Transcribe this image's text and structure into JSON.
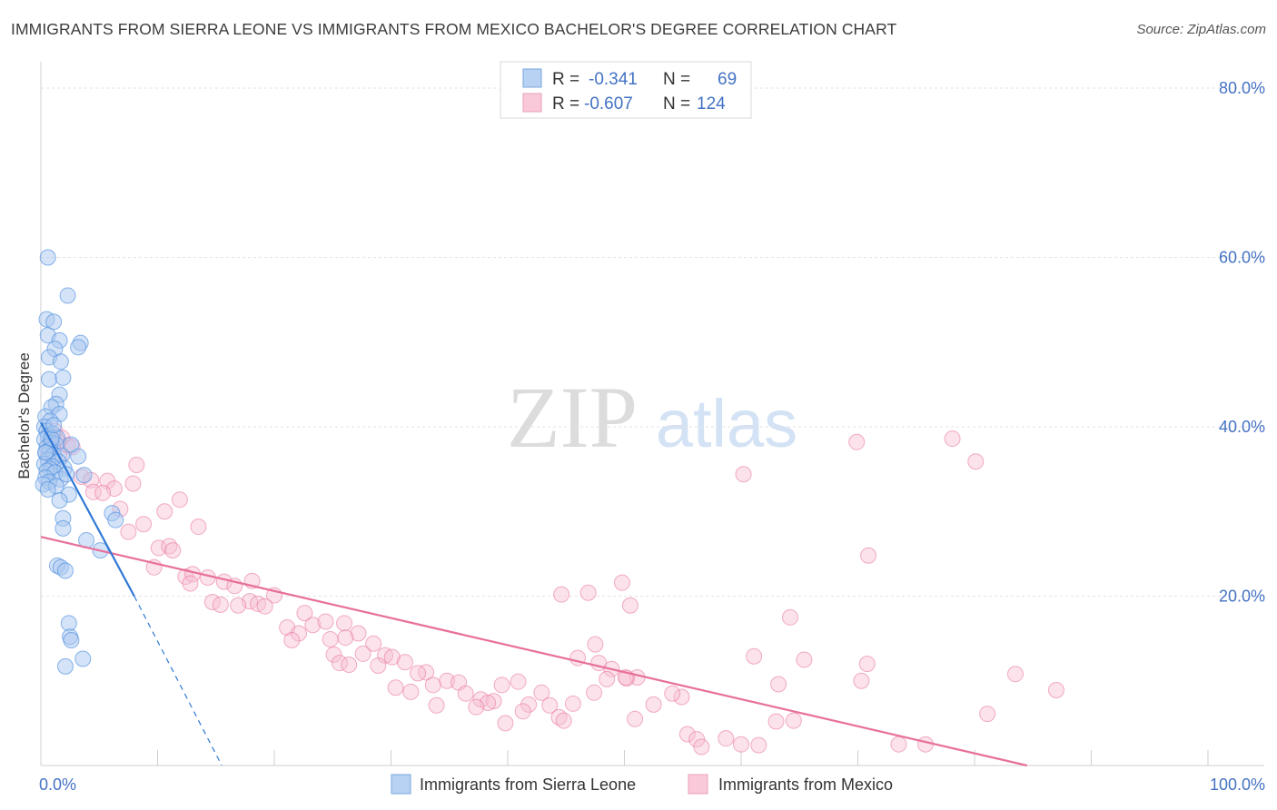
{
  "header": {
    "title": "IMMIGRANTS FROM SIERRA LEONE VS IMMIGRANTS FROM MEXICO BACHELOR'S DEGREE CORRELATION CHART",
    "source": "Source: ZipAtlas.com"
  },
  "watermark": {
    "zip": "ZIP",
    "atlas": "atlas"
  },
  "colors": {
    "blue": "#4d8fe0",
    "blue_fill": "#a9c8f0",
    "pink": "#e8709a",
    "pink_fill": "#f6bfd2",
    "axis_text": "#4472c4",
    "grid": "#e3e3e3"
  },
  "legend": {
    "rows": [
      {
        "r_label": "R =",
        "r_value": "-0.341",
        "n_label": "N =",
        "n_value": "69"
      },
      {
        "r_label": "R =",
        "r_value": "-0.607",
        "n_label": "N =",
        "n_value": "124"
      }
    ]
  },
  "bottom_legend": {
    "items": [
      "Immigrants from Sierra Leone",
      "Immigrants from Mexico"
    ]
  },
  "chart_data": {
    "type": "scatter",
    "title": "IMMIGRANTS FROM SIERRA LEONE VS IMMIGRANTS FROM MEXICO BACHELOR'S DEGREE CORRELATION CHART",
    "xlabel": "",
    "ylabel": "Bachelor's Degree",
    "xlim": [
      0,
      100
    ],
    "ylim": [
      0,
      80
    ],
    "x_ticks": [
      "0.0%",
      "100.0%"
    ],
    "y_ticks": [
      "20.0%",
      "40.0%",
      "60.0%",
      "80.0%"
    ],
    "y_tick_values": [
      20,
      40,
      60,
      80
    ],
    "grid": true,
    "legend_position": "top-center",
    "series": [
      {
        "name": "Immigrants from Sierra Leone",
        "r": -0.341,
        "n": 69,
        "trend": {
          "x0": 0,
          "y0": 40.5,
          "x1": 8,
          "y1": 20,
          "dashed_to_x": 15.5,
          "dashed_to_y": 0
        },
        "points": [
          [
            0.6,
            60
          ],
          [
            2.3,
            55.5
          ],
          [
            0.5,
            52.7
          ],
          [
            1.1,
            52.4
          ],
          [
            0.6,
            50.8
          ],
          [
            1.6,
            50.2
          ],
          [
            3.4,
            49.9
          ],
          [
            1.2,
            49.2
          ],
          [
            3.2,
            49.4
          ],
          [
            0.7,
            48.2
          ],
          [
            1.7,
            47.7
          ],
          [
            0.7,
            45.6
          ],
          [
            1.9,
            45.8
          ],
          [
            1.6,
            43.8
          ],
          [
            1.3,
            42.7
          ],
          [
            0.9,
            42.3
          ],
          [
            1.6,
            41.5
          ],
          [
            0.4,
            41.2
          ],
          [
            0.8,
            40.7
          ],
          [
            0.3,
            40.0
          ],
          [
            0.5,
            39.5
          ],
          [
            1.0,
            39.2
          ],
          [
            0.6,
            38.9
          ],
          [
            1.4,
            38.7
          ],
          [
            0.3,
            38.5
          ],
          [
            0.9,
            38.1
          ],
          [
            1.3,
            37.9
          ],
          [
            0.5,
            37.6
          ],
          [
            0.8,
            37.3
          ],
          [
            0.4,
            36.9
          ],
          [
            1.1,
            36.7
          ],
          [
            1.8,
            36.6
          ],
          [
            3.2,
            36.5
          ],
          [
            0.6,
            36.1
          ],
          [
            1.5,
            35.9
          ],
          [
            0.3,
            35.6
          ],
          [
            1.0,
            35.3
          ],
          [
            0.8,
            35.0
          ],
          [
            2.0,
            35.1
          ],
          [
            0.5,
            34.8
          ],
          [
            1.2,
            34.6
          ],
          [
            3.7,
            34.3
          ],
          [
            0.4,
            34.0
          ],
          [
            1.7,
            33.8
          ],
          [
            0.7,
            33.5
          ],
          [
            0.2,
            33.2
          ],
          [
            1.3,
            33.0
          ],
          [
            0.6,
            32.6
          ],
          [
            2.4,
            32.0
          ],
          [
            1.6,
            31.3
          ],
          [
            6.1,
            29.8
          ],
          [
            1.9,
            29.2
          ],
          [
            6.4,
            29.0
          ],
          [
            1.9,
            28.0
          ],
          [
            3.9,
            26.6
          ],
          [
            5.1,
            25.4
          ],
          [
            1.4,
            23.6
          ],
          [
            1.7,
            23.4
          ],
          [
            2.1,
            23.0
          ],
          [
            2.4,
            16.8
          ],
          [
            2.5,
            15.2
          ],
          [
            2.6,
            14.8
          ],
          [
            3.6,
            12.6
          ],
          [
            2.1,
            11.7
          ],
          [
            0.9,
            38.6
          ],
          [
            2.6,
            37.9
          ],
          [
            1.1,
            40.2
          ],
          [
            0.4,
            37.0
          ],
          [
            2.2,
            34.4
          ]
        ]
      },
      {
        "name": "Immigrants from Mexico",
        "r": -0.607,
        "n": 124,
        "trend": {
          "x0": 0,
          "y0": 27,
          "x1": 84.5,
          "y1": 0
        },
        "points": [
          [
            1.2,
            39.5
          ],
          [
            1.8,
            38.7
          ],
          [
            1.5,
            38.2
          ],
          [
            0.8,
            38.0
          ],
          [
            2.3,
            37.8
          ],
          [
            1.0,
            37.4
          ],
          [
            2.7,
            37.6
          ],
          [
            0.6,
            36.8
          ],
          [
            1.6,
            36.4
          ],
          [
            8.2,
            35.5
          ],
          [
            3.5,
            34.1
          ],
          [
            4.3,
            33.7
          ],
          [
            5.7,
            33.6
          ],
          [
            7.9,
            33.3
          ],
          [
            6.3,
            32.7
          ],
          [
            4.5,
            32.3
          ],
          [
            5.3,
            32.2
          ],
          [
            11.9,
            31.4
          ],
          [
            6.8,
            30.3
          ],
          [
            10.6,
            30.0
          ],
          [
            8.8,
            28.5
          ],
          [
            13.5,
            28.2
          ],
          [
            7.5,
            27.6
          ],
          [
            10.1,
            25.7
          ],
          [
            11.0,
            25.9
          ],
          [
            11.3,
            25.4
          ],
          [
            9.7,
            23.4
          ],
          [
            12.4,
            22.3
          ],
          [
            13.0,
            22.6
          ],
          [
            14.3,
            22.2
          ],
          [
            12.8,
            21.5
          ],
          [
            15.7,
            21.7
          ],
          [
            18.1,
            21.8
          ],
          [
            16.6,
            21.2
          ],
          [
            14.7,
            19.3
          ],
          [
            15.4,
            19.0
          ],
          [
            17.9,
            19.4
          ],
          [
            16.9,
            18.9
          ],
          [
            18.6,
            19.1
          ],
          [
            20.0,
            20.1
          ],
          [
            19.2,
            18.8
          ],
          [
            22.6,
            18.0
          ],
          [
            21.1,
            16.3
          ],
          [
            23.3,
            16.6
          ],
          [
            24.4,
            17.0
          ],
          [
            22.1,
            15.6
          ],
          [
            21.5,
            14.8
          ],
          [
            26.0,
            16.8
          ],
          [
            27.2,
            15.6
          ],
          [
            26.1,
            15.1
          ],
          [
            24.8,
            14.9
          ],
          [
            28.5,
            14.4
          ],
          [
            25.1,
            13.1
          ],
          [
            27.6,
            13.2
          ],
          [
            29.5,
            13.0
          ],
          [
            30.1,
            12.8
          ],
          [
            25.6,
            12.1
          ],
          [
            28.9,
            11.8
          ],
          [
            31.2,
            12.2
          ],
          [
            26.4,
            11.9
          ],
          [
            33.0,
            11.0
          ],
          [
            32.3,
            10.9
          ],
          [
            34.8,
            10.0
          ],
          [
            35.8,
            9.8
          ],
          [
            30.4,
            9.2
          ],
          [
            33.6,
            9.5
          ],
          [
            36.4,
            8.5
          ],
          [
            31.7,
            8.7
          ],
          [
            37.7,
            7.8
          ],
          [
            38.8,
            7.6
          ],
          [
            38.3,
            7.4
          ],
          [
            37.3,
            6.9
          ],
          [
            33.9,
            7.1
          ],
          [
            39.5,
            9.5
          ],
          [
            40.9,
            9.9
          ],
          [
            41.8,
            7.2
          ],
          [
            42.9,
            8.6
          ],
          [
            41.3,
            6.4
          ],
          [
            43.6,
            7.1
          ],
          [
            44.4,
            5.7
          ],
          [
            39.8,
            5.0
          ],
          [
            44.8,
            5.3
          ],
          [
            47.4,
            8.6
          ],
          [
            46.0,
            12.7
          ],
          [
            47.8,
            12.1
          ],
          [
            48.9,
            11.4
          ],
          [
            47.5,
            14.3
          ],
          [
            46.9,
            20.4
          ],
          [
            44.6,
            20.2
          ],
          [
            50.5,
            18.9
          ],
          [
            49.8,
            21.6
          ],
          [
            51.1,
            10.4
          ],
          [
            50.2,
            10.3
          ],
          [
            52.5,
            7.2
          ],
          [
            50.9,
            5.5
          ],
          [
            54.9,
            8.1
          ],
          [
            55.4,
            3.7
          ],
          [
            56.2,
            3.1
          ],
          [
            58.7,
            3.2
          ],
          [
            56.6,
            2.2
          ],
          [
            60.0,
            2.5
          ],
          [
            61.5,
            2.4
          ],
          [
            63.0,
            5.2
          ],
          [
            64.5,
            5.3
          ],
          [
            63.2,
            9.6
          ],
          [
            65.4,
            12.5
          ],
          [
            64.2,
            17.5
          ],
          [
            61.1,
            12.9
          ],
          [
            70.8,
            12.0
          ],
          [
            70.3,
            10.0
          ],
          [
            70.9,
            24.8
          ],
          [
            73.5,
            2.5
          ],
          [
            75.8,
            2.5
          ],
          [
            69.9,
            38.2
          ],
          [
            78.1,
            38.6
          ],
          [
            80.1,
            35.9
          ],
          [
            81.1,
            6.1
          ],
          [
            83.5,
            10.8
          ],
          [
            87.0,
            8.9
          ],
          [
            60.2,
            34.4
          ],
          [
            50.1,
            10.4
          ],
          [
            48.5,
            10.2
          ],
          [
            45.6,
            7.3
          ],
          [
            54.1,
            8.5
          ]
        ]
      }
    ]
  }
}
